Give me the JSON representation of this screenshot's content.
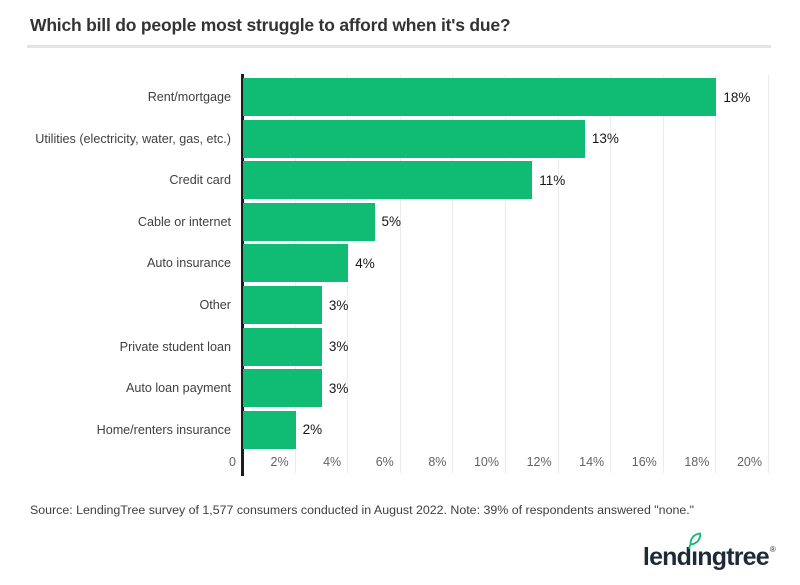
{
  "page": {
    "title": "Which bill do people most struggle to afford when it's due?",
    "source_note": "Source: LendingTree survey of 1,577 consumers conducted in August 2022. Note: 39% of respondents answered \"none.\""
  },
  "logo": {
    "text": "lendingtree",
    "parts": {
      "pre": "lend",
      "i": "ı",
      "post": "ngtree"
    },
    "registered": "®"
  },
  "colors": {
    "bar_green": "#10bc74",
    "leaf_green": "#1fb874",
    "logo_navy": "#1e2a38",
    "axis_black": "#1c1c1c",
    "gridline_gray": "#ececec",
    "title_gray": "#333333"
  },
  "chart_data": {
    "type": "bar",
    "orientation": "horizontal",
    "title": "Which bill do people most struggle to afford when it's due?",
    "categories": [
      "Rent/mortgage",
      "Utilities (electricity, water, gas, etc.)",
      "Credit card",
      "Cable or internet",
      "Auto insurance",
      "Other",
      "Private student loan",
      "Auto loan payment",
      "Home/renters insurance"
    ],
    "values": [
      18,
      13,
      11,
      5,
      4,
      3,
      3,
      3,
      2
    ],
    "value_labels": [
      "18%",
      "13%",
      "11%",
      "5%",
      "4%",
      "3%",
      "3%",
      "3%",
      "2%"
    ],
    "x_tick_labels": [
      "0",
      "2%",
      "4%",
      "6%",
      "8%",
      "10%",
      "12%",
      "14%",
      "16%",
      "18%",
      "20%"
    ],
    "x_tick_values": [
      0,
      2,
      4,
      6,
      8,
      10,
      12,
      14,
      16,
      18,
      20
    ],
    "xlim": [
      0,
      20
    ],
    "grid": "vertical",
    "legend": "none"
  }
}
